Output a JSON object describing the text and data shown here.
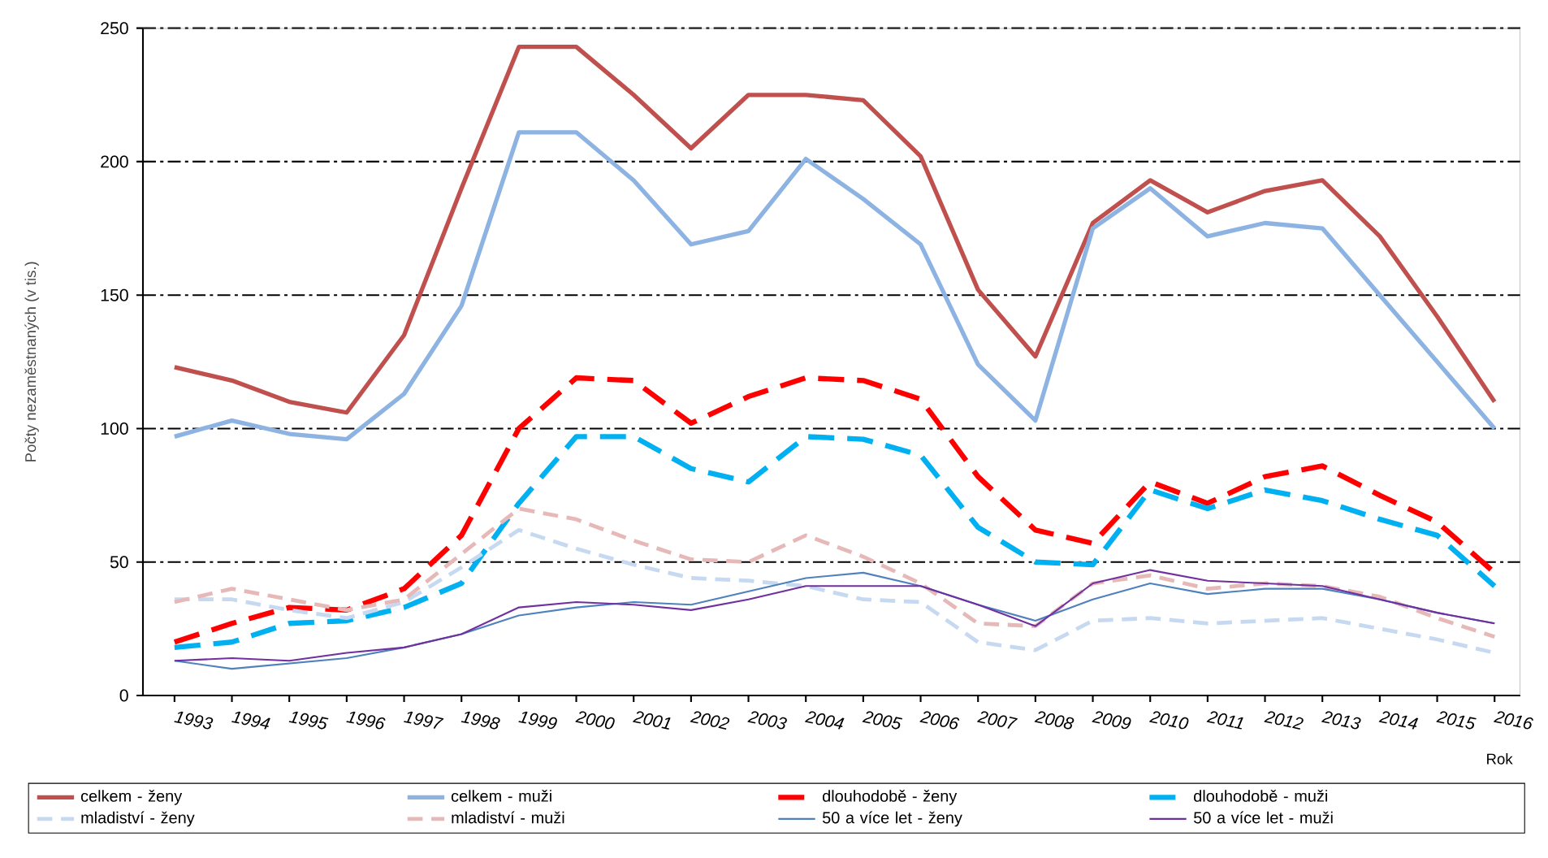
{
  "chart_data": {
    "type": "line",
    "ylabel": "Počty nezaměstnaných (v tis.)",
    "xlabel": "Rok",
    "categories": [
      "1993",
      "1994",
      "1995",
      "1996",
      "1997",
      "1998",
      "1999",
      "2000",
      "2001",
      "2002",
      "2003",
      "2004",
      "2005",
      "2006",
      "2007",
      "2008",
      "2009",
      "2010",
      "2011",
      "2012",
      "2013",
      "2014",
      "2015",
      "2016"
    ],
    "ylim": [
      0,
      250
    ],
    "yticks": [
      0,
      50,
      100,
      150,
      200,
      250
    ],
    "grid": "y",
    "legend": "bottom",
    "marker": "none",
    "series": [
      {
        "name": "celkem - ženy",
        "color": "#c0504d",
        "line_style": "solid",
        "values": [
          123,
          118,
          110,
          106,
          135,
          190,
          243,
          243,
          225,
          205,
          225,
          225,
          223,
          202,
          152,
          127,
          177,
          193,
          181,
          189,
          193,
          172,
          142,
          110
        ]
      },
      {
        "name": "celkem - muži",
        "color": "#8db3e2",
        "line_style": "solid",
        "values": [
          97,
          103,
          98,
          96,
          113,
          146,
          211,
          211,
          193,
          169,
          174,
          201,
          186,
          169,
          124,
          103,
          175,
          190,
          172,
          177,
          175,
          150,
          125,
          100
        ]
      },
      {
        "name": "dlouhodobě - ženy",
        "color": "#ff0000",
        "line_style": "dashed",
        "values": [
          20,
          27,
          33,
          32,
          40,
          60,
          100,
          119,
          118,
          102,
          112,
          119,
          118,
          111,
          82,
          62,
          57,
          80,
          72,
          82,
          86,
          75,
          65,
          46
        ]
      },
      {
        "name": "dlouhodobě - muži",
        "color": "#00b0f0",
        "line_style": "dashed",
        "values": [
          18,
          20,
          27,
          28,
          33,
          42,
          72,
          97,
          97,
          85,
          80,
          97,
          96,
          90,
          63,
          50,
          49,
          77,
          70,
          77,
          73,
          66,
          60,
          41
        ]
      },
      {
        "name": "mladiství - ženy",
        "color": "#c6d9f1",
        "line_style": "dashed",
        "values": [
          36,
          36,
          32,
          29,
          35,
          48,
          62,
          55,
          49,
          44,
          43,
          41,
          36,
          35,
          20,
          17,
          28,
          29,
          27,
          28,
          29,
          25,
          21,
          16
        ]
      },
      {
        "name": "mladiství - muži",
        "color": "#e6b9b8",
        "line_style": "dashed",
        "values": [
          35,
          40,
          36,
          32,
          36,
          53,
          70,
          66,
          58,
          51,
          50,
          60,
          52,
          42,
          27,
          26,
          42,
          45,
          40,
          42,
          41,
          37,
          29,
          22
        ]
      },
      {
        "name": "50 a více let - ženy",
        "color": "#4f81bd",
        "line_style": "solid",
        "values": [
          13,
          10,
          12,
          14,
          18,
          23,
          30,
          33,
          35,
          34,
          39,
          44,
          46,
          41,
          34,
          28,
          36,
          42,
          38,
          40,
          40,
          36,
          31,
          27
        ]
      },
      {
        "name": "50 a více let - muži",
        "color": "#7030a0",
        "line_style": "solid",
        "values": [
          13,
          14,
          13,
          16,
          18,
          23,
          33,
          35,
          34,
          32,
          36,
          41,
          41,
          41,
          34,
          26,
          42,
          47,
          43,
          42,
          41,
          36,
          31,
          27
        ]
      }
    ]
  }
}
